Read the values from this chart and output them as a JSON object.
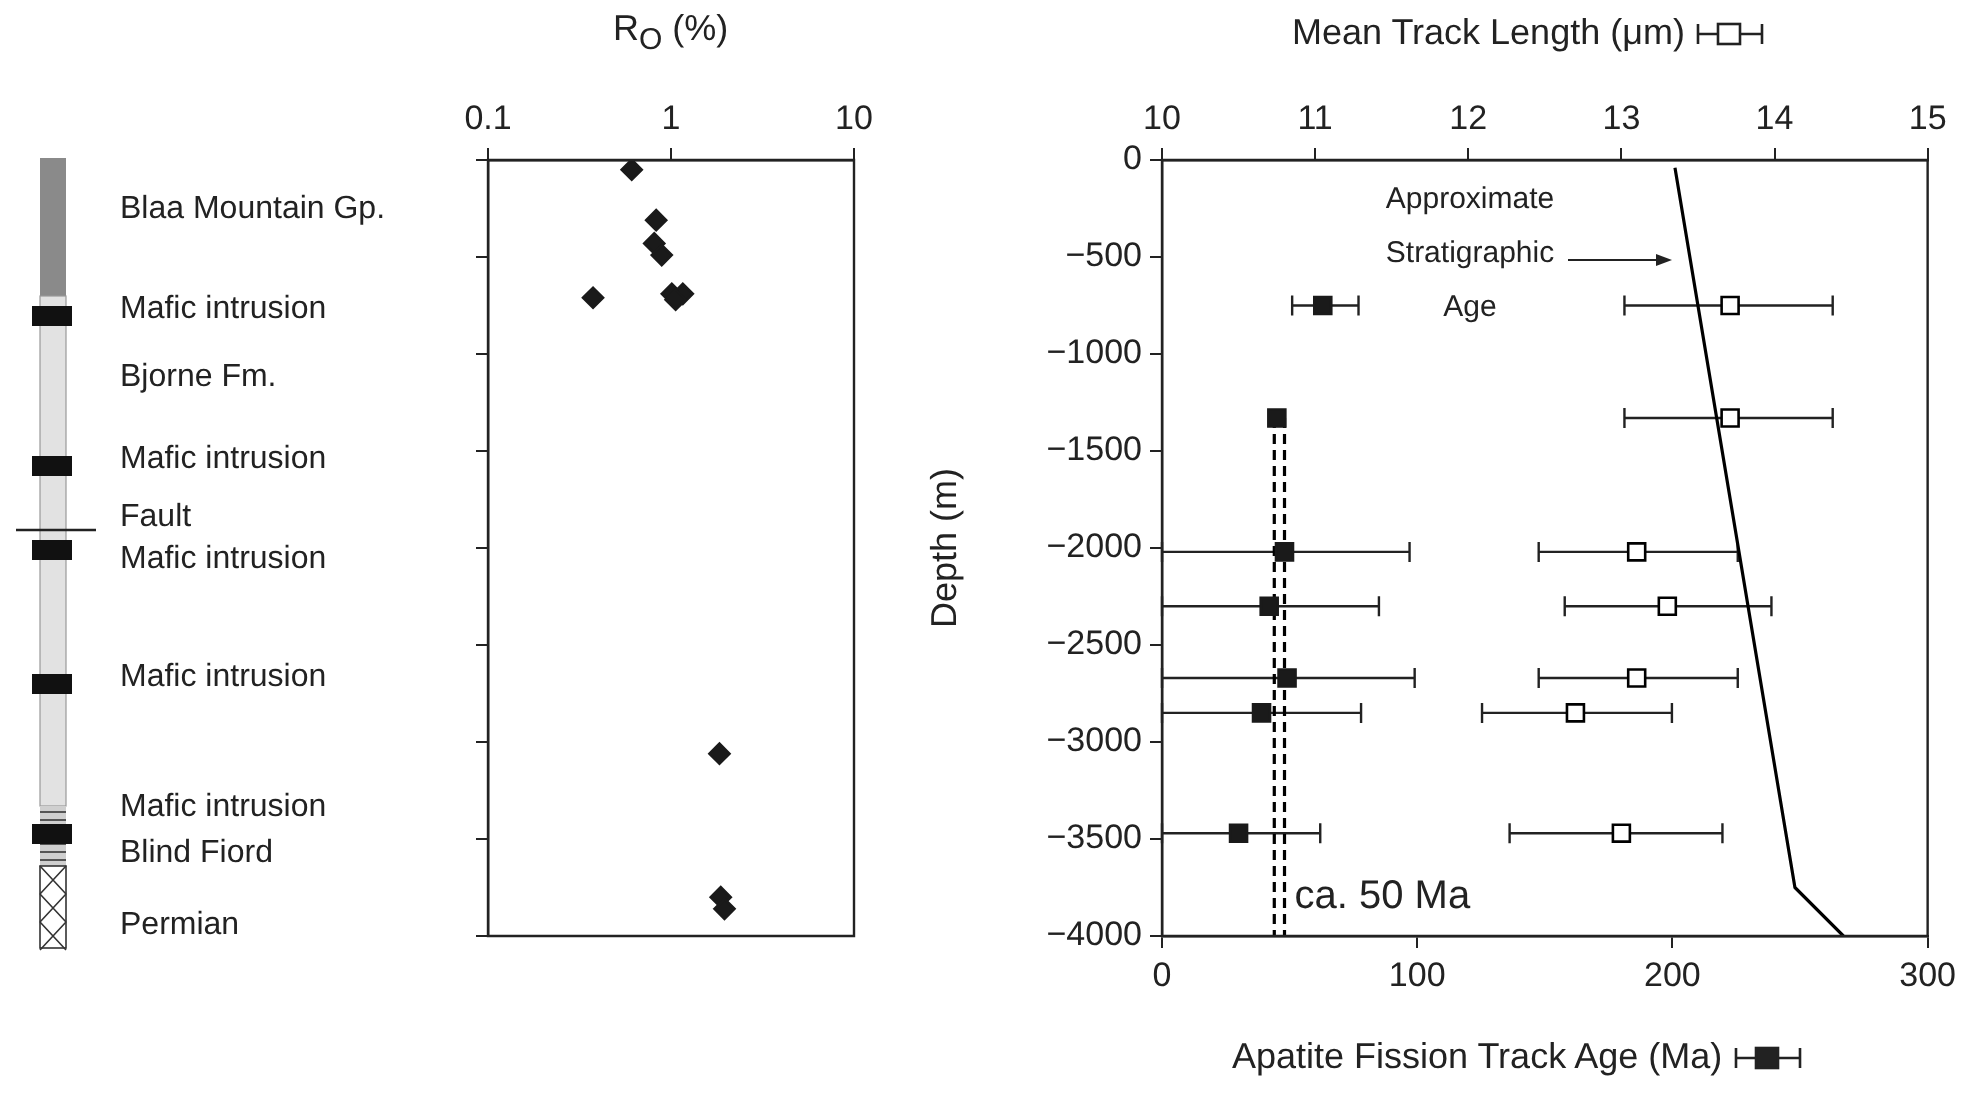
{
  "chart_data": [
    {
      "type": "scatter",
      "xlabel": "R$_{O}$ (%)",
      "x": [
        0.61,
        0.83,
        0.81,
        0.89,
        0.375,
        1.01,
        1.16,
        1.06,
        1.84,
        1.87,
        1.96
      ],
      "values": [
        -50,
        -310,
        -430,
        -490,
        -710,
        -690,
        -690,
        -720,
        -3060,
        -3800,
        -3860
      ],
      "color": "#1a1a1a",
      "marker": "diamond",
      "log": "x",
      "xlim": [
        0.1,
        10
      ],
      "xticks": [
        0.1,
        1,
        10
      ],
      "ylim": [
        -4000,
        0
      ],
      "yticks": [
        -4000,
        -3500,
        -3000,
        -2500,
        -2000,
        -1500,
        -1000,
        -500,
        0
      ],
      "tick_labels": "x",
      "grid": false,
      "legend": false,
      "annotations": [
        "Blaa Mountain Gp.",
        "Mafic intrusion",
        "Bjorne Fm.",
        "Mafic intrusion",
        "Fault",
        "Mafic intrusion",
        "Mafic intrusion",
        "Mafic intrusion",
        "Blind Fiord",
        "Permian"
      ]
    },
    {
      "type": "scatter",
      "xlabel": "Apatite Fission Track Age (Ma)",
      "x2label": "Mean Track Length (μm)",
      "ylabel": "Depth (m)",
      "series": [
        {
          "type": "scatter",
          "color": "#1a1a1a",
          "marker": "square",
          "x": [
            63,
            45,
            48,
            42,
            49,
            39,
            30
          ],
          "values": [
            -750,
            -1330,
            -2020,
            -2300,
            -2670,
            -2850,
            -3470
          ],
          "xerrors": [
            [
              51,
              77
            ],
            null,
            [
              0,
              97
            ],
            [
              0,
              85
            ],
            [
              0,
              99
            ],
            [
              0,
              78
            ],
            [
              0,
              62
            ]
          ]
        },
        {
          "type": "scatter",
          "axis": "x2",
          "color": "#000000",
          "marker": "square",
          "x": [
            13.71,
            13.71,
            13.1,
            13.3,
            13.1,
            12.7,
            13.0
          ],
          "values": [
            -750,
            -1330,
            -2020,
            -2300,
            -2670,
            -2850,
            -3470
          ],
          "xerrors": [
            [
              13.02,
              14.38
            ],
            [
              13.02,
              14.38
            ],
            [
              12.46,
              13.76
            ],
            [
              12.63,
              13.98
            ],
            [
              12.46,
              13.76
            ],
            [
              12.09,
              13.33
            ],
            [
              12.27,
              13.66
            ]
          ]
        },
        {
          "type": "line",
          "color": "#000000",
          "marker": "none",
          "x": [
            201,
            248,
            267
          ],
          "values": [
            -40,
            -3750,
            -4000
          ]
        },
        {
          "type": "line",
          "color": "#000000",
          "marker": "none",
          "line_style": "dashed",
          "x": [
            44,
            44
          ],
          "values": [
            -1330,
            -4000
          ]
        },
        {
          "type": "line",
          "color": "#000000",
          "marker": "none",
          "line_style": "dashed",
          "x": [
            48,
            48
          ],
          "values": [
            -1330,
            -4000
          ]
        }
      ],
      "xlim": [
        0,
        300
      ],
      "xticks": [
        0,
        100,
        200,
        300
      ],
      "x2lim": [
        10,
        15
      ],
      "x2ticks": [
        10,
        11,
        12,
        13,
        14,
        15
      ],
      "ylim": [
        -4000,
        0
      ],
      "yticks": [
        -4000,
        -3500,
        -3000,
        -2500,
        -2000,
        -1500,
        -1000,
        -500,
        0
      ],
      "grid": false,
      "legend": false,
      "annotations": [
        "Approximate Stratigraphic Age",
        {
          "text": "ca. 50 Ma",
          "x": 48,
          "y": -3800
        }
      ]
    }
  ]
}
